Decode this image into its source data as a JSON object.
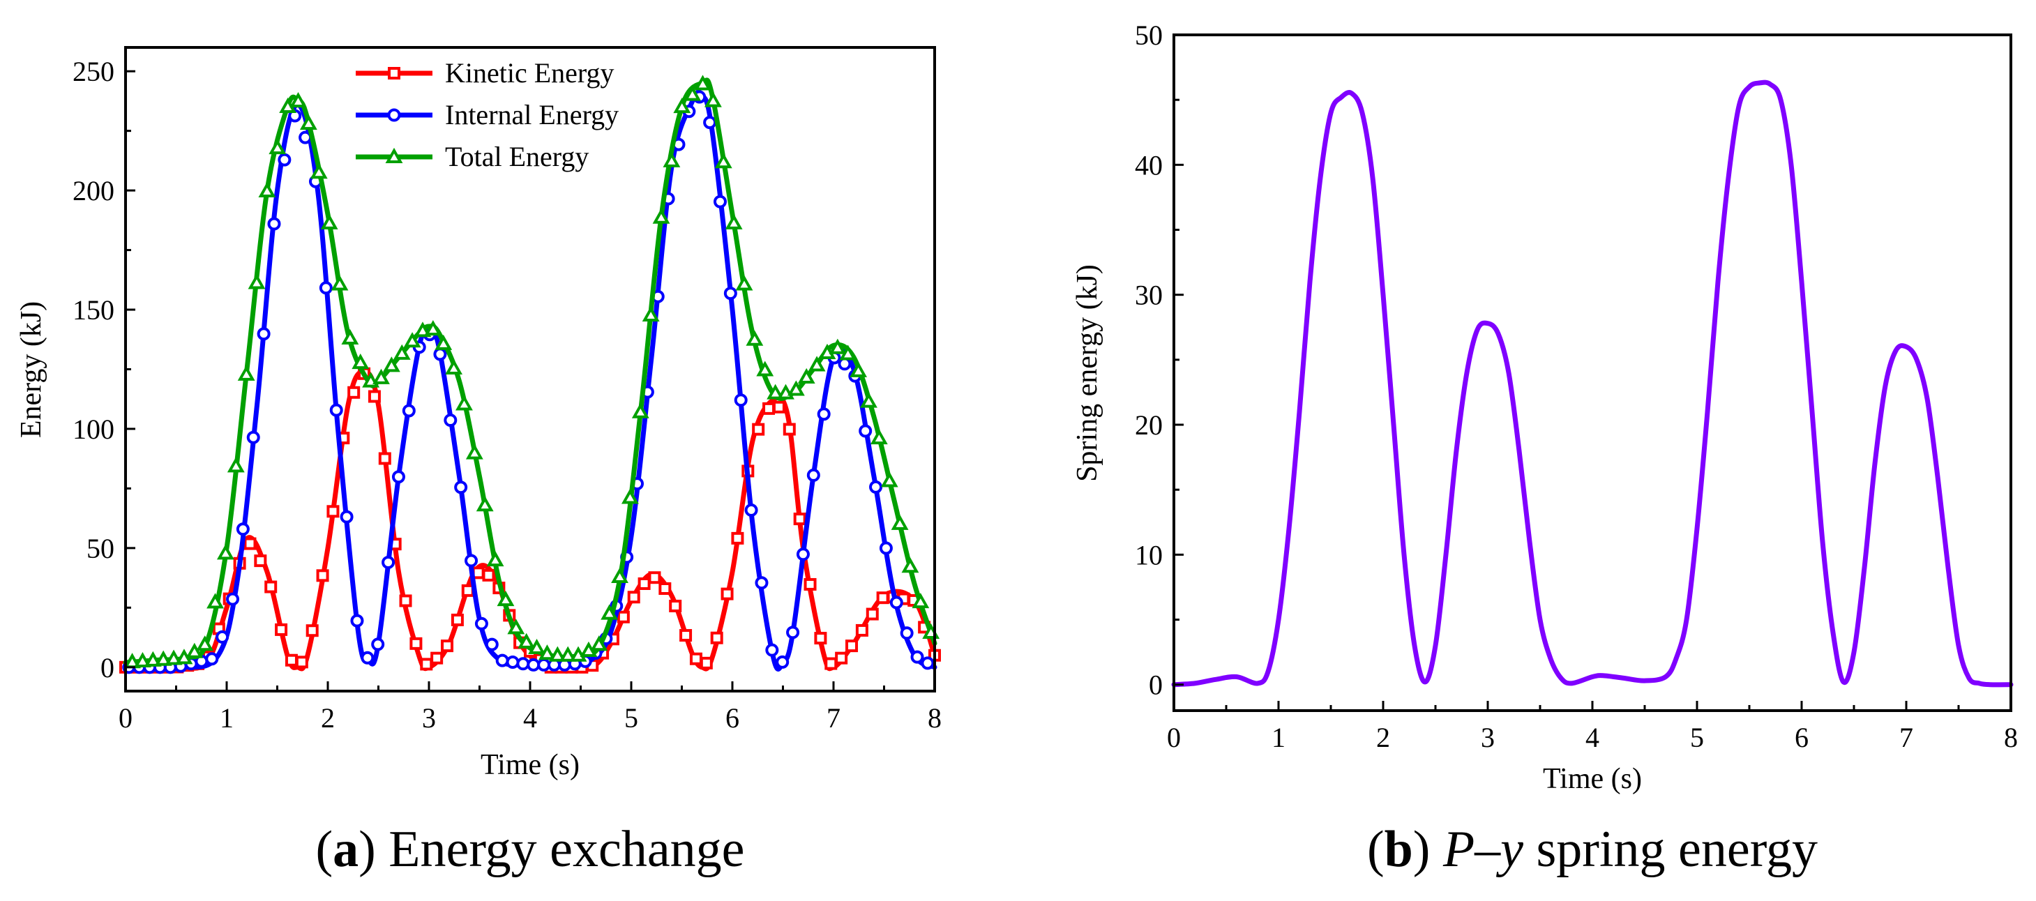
{
  "chart_data": [
    {
      "type": "line",
      "id": "a",
      "caption": {
        "letter": "a",
        "text": "Energy exchange"
      },
      "xlabel": "Time (s)",
      "ylabel": "Energy (kJ)",
      "xlim": [
        0,
        8
      ],
      "ylim": [
        -10,
        260
      ],
      "xticks": [
        0,
        1,
        2,
        3,
        4,
        5,
        6,
        7,
        8
      ],
      "yticks": [
        0,
        50,
        100,
        150,
        200,
        250
      ],
      "legend_position": "top-center",
      "series": [
        {
          "name": "Kinetic Energy",
          "color": "#ff0000",
          "marker": "square",
          "x": [
            0,
            0.5,
            0.8,
            1.0,
            1.2,
            1.4,
            1.6,
            1.7,
            1.8,
            2.0,
            2.2,
            2.35,
            2.5,
            2.7,
            2.9,
            3.0,
            3.2,
            3.45,
            3.65,
            3.9,
            4.2,
            4.6,
            4.8,
            5.0,
            5.2,
            5.4,
            5.6,
            5.7,
            5.8,
            6.0,
            6.2,
            6.4,
            6.55,
            6.7,
            6.9,
            7.0,
            7.2,
            7.5,
            7.8,
            8.0
          ],
          "y": [
            0,
            0,
            2,
            25,
            54,
            40,
            5,
            0,
            5,
            50,
            110,
            124,
            110,
            40,
            5,
            0,
            10,
            40,
            38,
            10,
            0,
            0,
            10,
            28,
            39,
            30,
            6,
            0,
            4,
            40,
            95,
            112,
            105,
            50,
            6,
            0,
            10,
            30,
            28,
            5
          ]
        },
        {
          "name": "Internal Energy",
          "color": "#0000ff",
          "marker": "circle",
          "x": [
            0,
            0.5,
            0.9,
            1.1,
            1.3,
            1.5,
            1.7,
            1.9,
            2.1,
            2.3,
            2.4,
            2.5,
            2.7,
            2.9,
            3.0,
            3.1,
            3.3,
            3.5,
            3.7,
            4.0,
            4.4,
            4.6,
            4.8,
            5.0,
            5.2,
            5.4,
            5.6,
            5.7,
            5.8,
            6.0,
            6.2,
            6.4,
            6.5,
            6.6,
            6.8,
            7.0,
            7.2,
            7.4,
            7.6,
            7.8,
            8.0
          ],
          "y": [
            0,
            0,
            4,
            35,
            110,
            200,
            236,
            200,
            100,
            15,
            3,
            10,
            80,
            134,
            140,
            134,
            80,
            20,
            3,
            1,
            1,
            3,
            15,
            55,
            130,
            210,
            237,
            240,
            225,
            150,
            60,
            5,
            2,
            15,
            80,
            130,
            125,
            80,
            30,
            5,
            0
          ]
        },
        {
          "name": "Total Energy",
          "color": "#00a000",
          "marker": "triangle",
          "x": [
            0,
            0.3,
            0.6,
            0.8,
            1.0,
            1.2,
            1.4,
            1.6,
            1.7,
            1.8,
            2.0,
            2.2,
            2.4,
            2.5,
            2.7,
            2.9,
            3.0,
            3.1,
            3.3,
            3.5,
            3.7,
            3.9,
            4.2,
            4.5,
            4.7,
            4.9,
            5.1,
            5.3,
            5.5,
            5.7,
            5.8,
            6.0,
            6.2,
            6.4,
            6.6,
            6.8,
            7.0,
            7.2,
            7.4,
            7.6,
            7.8,
            8.0
          ],
          "y": [
            2,
            3,
            4,
            10,
            50,
            125,
            200,
            235,
            238,
            230,
            190,
            140,
            120,
            120,
            130,
            140,
            143,
            140,
            120,
            80,
            35,
            12,
            5,
            5,
            10,
            40,
            110,
            190,
            235,
            245,
            240,
            190,
            140,
            115,
            115,
            125,
            135,
            130,
            105,
            70,
            35,
            10
          ]
        }
      ]
    },
    {
      "type": "line",
      "id": "b",
      "caption": {
        "letter": "b",
        "text_italic": "P–y",
        "text": "spring energy"
      },
      "xlabel": "Time (s)",
      "ylabel": "Spring energy (kJ)",
      "xlim": [
        0,
        8
      ],
      "ylim": [
        -2,
        50
      ],
      "xticks": [
        0,
        1,
        2,
        3,
        4,
        5,
        6,
        7,
        8
      ],
      "yticks": [
        0,
        10,
        20,
        30,
        40,
        50
      ],
      "series": [
        {
          "name": "Spring energy",
          "color": "#7f00ff",
          "x": [
            0,
            0.2,
            0.4,
            0.6,
            0.8,
            0.9,
            1.0,
            1.1,
            1.2,
            1.3,
            1.4,
            1.5,
            1.6,
            1.7,
            1.8,
            1.9,
            2.0,
            2.1,
            2.2,
            2.3,
            2.4,
            2.5,
            2.6,
            2.7,
            2.8,
            2.9,
            3.0,
            3.1,
            3.2,
            3.3,
            3.4,
            3.5,
            3.6,
            3.7,
            3.8,
            4.0,
            4.1,
            4.3,
            4.5,
            4.7,
            4.8,
            4.9,
            5.0,
            5.1,
            5.2,
            5.3,
            5.4,
            5.5,
            5.6,
            5.7,
            5.8,
            5.9,
            6.0,
            6.1,
            6.2,
            6.3,
            6.4,
            6.5,
            6.6,
            6.7,
            6.8,
            6.9,
            7.0,
            7.1,
            7.2,
            7.3,
            7.4,
            7.5,
            7.6,
            7.7,
            7.8,
            8.0
          ],
          "y": [
            0,
            0.1,
            0.4,
            0.6,
            0.1,
            1,
            5,
            12,
            21,
            31,
            39,
            44,
            45.2,
            45.5,
            44,
            39,
            30,
            20,
            10,
            3,
            0.2,
            3,
            10,
            18,
            24,
            27.3,
            27.8,
            27,
            24,
            18,
            11,
            5,
            2,
            0.5,
            0.1,
            0.6,
            0.7,
            0.5,
            0.3,
            0.6,
            2,
            5,
            12,
            21,
            31,
            39,
            44.5,
            46,
            46.3,
            46.2,
            45,
            40,
            31,
            21,
            11,
            4,
            0.2,
            2.5,
            9,
            17,
            23,
            25.7,
            26,
            25,
            22,
            16,
            9,
            3,
            0.5,
            0.1,
            0,
            0
          ]
        }
      ]
    }
  ]
}
